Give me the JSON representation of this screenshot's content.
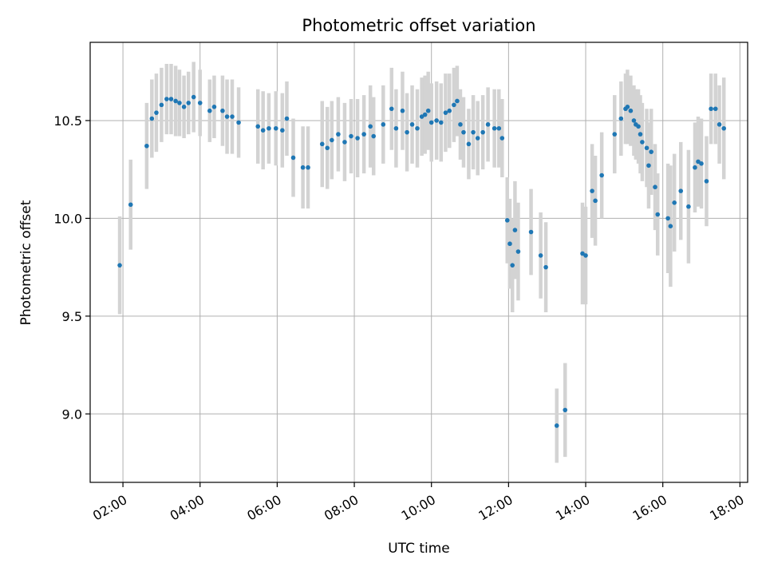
{
  "chart_data": {
    "type": "scatter",
    "title": "Photometric offset variation",
    "xlabel": "UTC time",
    "ylabel": "Photometric offset",
    "x_ticks": [
      "02:00",
      "04:00",
      "06:00",
      "08:00",
      "10:00",
      "12:00",
      "14:00",
      "16:00",
      "18:00"
    ],
    "y_ticks": [
      "9.0",
      "9.5",
      "10.0",
      "10.5"
    ],
    "xlim": [
      "01:09",
      "18:12"
    ],
    "ylim": [
      8.65,
      10.9
    ],
    "grid": true,
    "colors": {
      "points": "#1f77b4",
      "errorbars": "#d3d3d3",
      "grid": "#b0b0b0"
    },
    "x_unit": "HH:MM",
    "series": [
      {
        "points": [
          [
            "01:55",
            9.76,
            0.25
          ],
          [
            "02:12",
            10.07,
            0.23
          ],
          [
            "02:37",
            10.37,
            0.22
          ],
          [
            "02:45",
            10.51,
            0.2
          ],
          [
            "02:52",
            10.54,
            0.2
          ],
          [
            "03:00",
            10.58,
            0.19
          ],
          [
            "03:08",
            10.61,
            0.18
          ],
          [
            "03:15",
            10.61,
            0.18
          ],
          [
            "03:22",
            10.6,
            0.18
          ],
          [
            "03:28",
            10.59,
            0.17
          ],
          [
            "03:35",
            10.57,
            0.16
          ],
          [
            "03:42",
            10.59,
            0.16
          ],
          [
            "03:50",
            10.62,
            0.18
          ],
          [
            "04:00",
            10.59,
            0.17
          ],
          [
            "04:15",
            10.55,
            0.16
          ],
          [
            "04:22",
            10.57,
            0.16
          ],
          [
            "04:35",
            10.55,
            0.18
          ],
          [
            "04:42",
            10.52,
            0.19
          ],
          [
            "04:50",
            10.52,
            0.19
          ],
          [
            "05:00",
            10.49,
            0.18
          ],
          [
            "05:30",
            10.47,
            0.19
          ],
          [
            "05:38",
            10.45,
            0.2
          ],
          [
            "05:47",
            10.46,
            0.18
          ],
          [
            "05:58",
            10.46,
            0.19
          ],
          [
            "06:08",
            10.45,
            0.19
          ],
          [
            "06:15",
            10.51,
            0.19
          ],
          [
            "06:25",
            10.31,
            0.2
          ],
          [
            "06:40",
            10.26,
            0.21
          ],
          [
            "06:48",
            10.26,
            0.21
          ],
          [
            "07:10",
            10.38,
            0.22
          ],
          [
            "07:18",
            10.36,
            0.21
          ],
          [
            "07:25",
            10.4,
            0.2
          ],
          [
            "07:35",
            10.43,
            0.19
          ],
          [
            "07:45",
            10.39,
            0.2
          ],
          [
            "07:55",
            10.42,
            0.19
          ],
          [
            "08:05",
            10.41,
            0.2
          ],
          [
            "08:15",
            10.43,
            0.2
          ],
          [
            "08:25",
            10.47,
            0.21
          ],
          [
            "08:30",
            10.42,
            0.2
          ],
          [
            "08:45",
            10.48,
            0.2
          ],
          [
            "08:58",
            10.56,
            0.21
          ],
          [
            "09:05",
            10.46,
            0.2
          ],
          [
            "09:15",
            10.55,
            0.2
          ],
          [
            "09:22",
            10.44,
            0.2
          ],
          [
            "09:30",
            10.48,
            0.2
          ],
          [
            "09:38",
            10.46,
            0.2
          ],
          [
            "09:45",
            10.52,
            0.2
          ],
          [
            "09:50",
            10.53,
            0.2
          ],
          [
            "09:55",
            10.55,
            0.2
          ],
          [
            "10:00",
            10.49,
            0.2
          ],
          [
            "10:08",
            10.5,
            0.2
          ],
          [
            "10:15",
            10.49,
            0.2
          ],
          [
            "10:22",
            10.54,
            0.2
          ],
          [
            "10:28",
            10.55,
            0.19
          ],
          [
            "10:35",
            10.58,
            0.19
          ],
          [
            "10:40",
            10.6,
            0.18
          ],
          [
            "10:45",
            10.48,
            0.18
          ],
          [
            "10:50",
            10.44,
            0.18
          ],
          [
            "10:58",
            10.38,
            0.18
          ],
          [
            "11:05",
            10.44,
            0.19
          ],
          [
            "11:12",
            10.41,
            0.19
          ],
          [
            "11:20",
            10.44,
            0.19
          ],
          [
            "11:28",
            10.48,
            0.19
          ],
          [
            "11:38",
            10.46,
            0.2
          ],
          [
            "11:45",
            10.46,
            0.2
          ],
          [
            "11:50",
            10.41,
            0.2
          ],
          [
            "11:58",
            9.99,
            0.22
          ],
          [
            "12:02",
            9.87,
            0.23
          ],
          [
            "12:06",
            9.76,
            0.24
          ],
          [
            "12:10",
            9.94,
            0.25
          ],
          [
            "12:15",
            9.83,
            0.25
          ],
          [
            "12:35",
            9.93,
            0.22
          ],
          [
            "12:50",
            9.81,
            0.22
          ],
          [
            "12:58",
            9.75,
            0.23
          ],
          [
            "13:15",
            8.94,
            0.19
          ],
          [
            "13:28",
            9.02,
            0.24
          ],
          [
            "13:55",
            9.82,
            0.26
          ],
          [
            "14:00",
            9.81,
            0.25
          ],
          [
            "14:10",
            10.14,
            0.24
          ],
          [
            "14:15",
            10.09,
            0.23
          ],
          [
            "14:25",
            10.22,
            0.22
          ],
          [
            "14:45",
            10.43,
            0.2
          ],
          [
            "14:55",
            10.51,
            0.19
          ],
          [
            "15:02",
            10.56,
            0.18
          ],
          [
            "15:05",
            10.57,
            0.19
          ],
          [
            "15:10",
            10.55,
            0.18
          ],
          [
            "15:15",
            10.5,
            0.18
          ],
          [
            "15:18",
            10.48,
            0.18
          ],
          [
            "15:22",
            10.47,
            0.19
          ],
          [
            "15:25",
            10.43,
            0.2
          ],
          [
            "15:28",
            10.39,
            0.2
          ],
          [
            "15:35",
            10.36,
            0.2
          ],
          [
            "15:38",
            10.27,
            0.22
          ],
          [
            "15:42",
            10.34,
            0.22
          ],
          [
            "15:48",
            10.16,
            0.22
          ],
          [
            "15:52",
            10.02,
            0.21
          ],
          [
            "16:08",
            10.0,
            0.28
          ],
          [
            "16:12",
            9.96,
            0.31
          ],
          [
            "16:18",
            10.08,
            0.25
          ],
          [
            "16:28",
            10.14,
            0.25
          ],
          [
            "16:40",
            10.06,
            0.29
          ],
          [
            "16:50",
            10.26,
            0.23
          ],
          [
            "16:55",
            10.29,
            0.23
          ],
          [
            "17:00",
            10.28,
            0.23
          ],
          [
            "17:08",
            10.19,
            0.23
          ],
          [
            "17:15",
            10.56,
            0.18
          ],
          [
            "17:22",
            10.56,
            0.18
          ],
          [
            "17:28",
            10.48,
            0.2
          ],
          [
            "17:35",
            10.46,
            0.26
          ]
        ]
      }
    ]
  }
}
